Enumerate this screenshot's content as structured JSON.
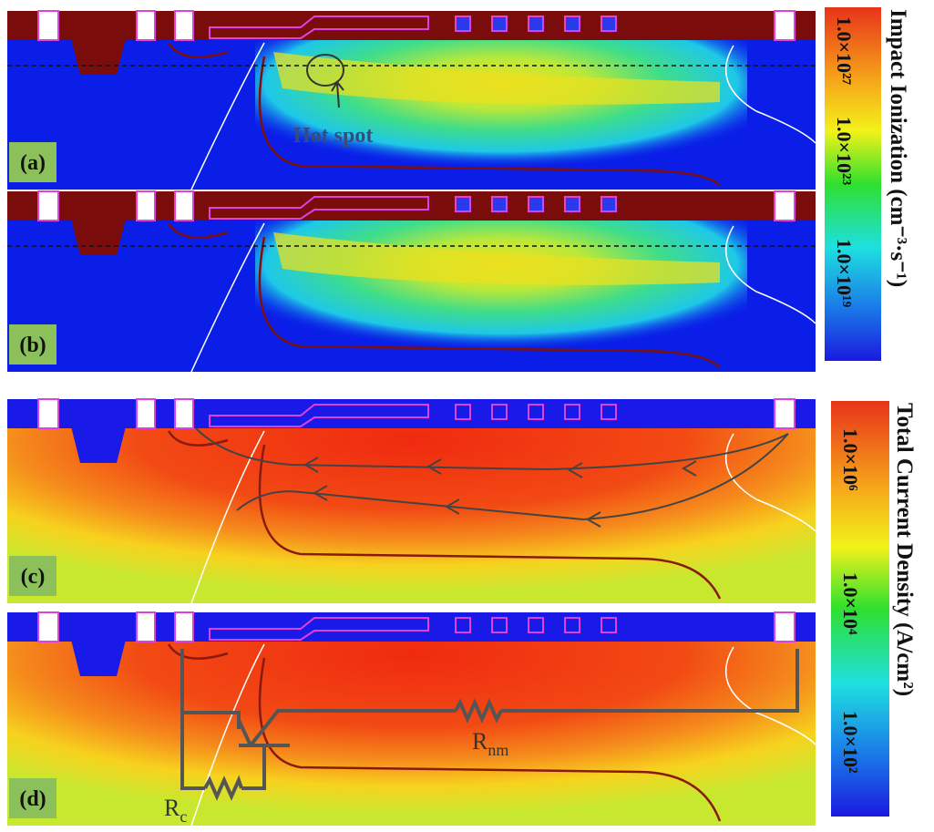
{
  "panels": [
    {
      "label": "(a)"
    },
    {
      "label": "(b)"
    },
    {
      "label": "(c)"
    },
    {
      "label": "(d)"
    }
  ],
  "annotations": {
    "hot_spot": "Hot spot"
  },
  "colorbars": [
    {
      "title": "Impact Ionization (cm⁻³·s⁻¹)",
      "ticks": [
        "1.0×10²⁷",
        "1.0×10²³",
        "1.0×10¹⁹"
      ]
    },
    {
      "title": "Total Current Density (A/cm²)",
      "ticks": [
        "1.0×10⁶",
        "1.0×10⁴",
        "1.0×10²"
      ]
    }
  ],
  "resistors": [
    {
      "symbol": "R",
      "subscript": "nm"
    },
    {
      "symbol": "R",
      "subscript": "c"
    }
  ]
}
